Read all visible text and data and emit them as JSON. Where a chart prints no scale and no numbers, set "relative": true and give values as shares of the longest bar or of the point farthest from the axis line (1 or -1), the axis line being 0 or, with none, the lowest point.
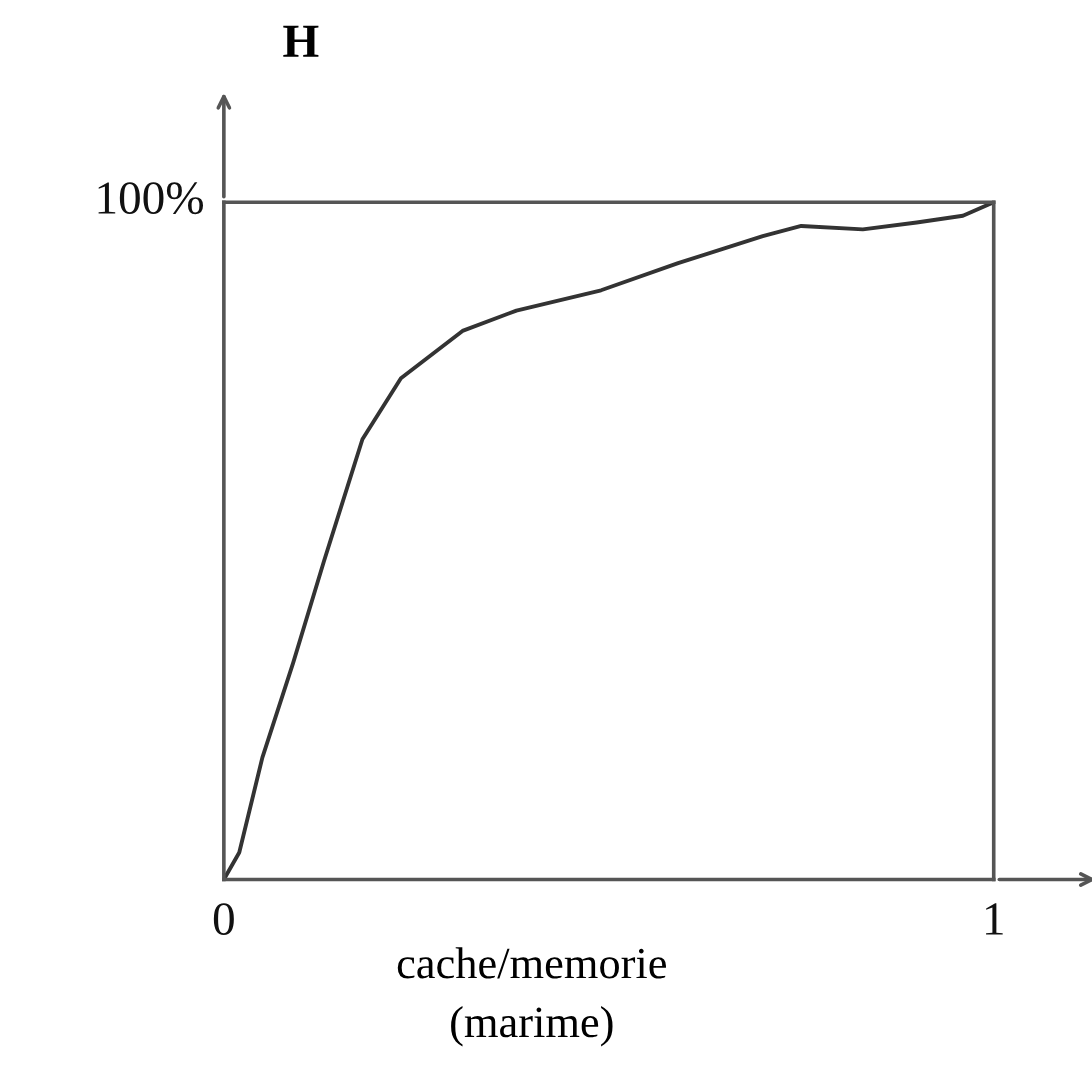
{
  "chart_data": {
    "type": "line",
    "relative": true,
    "xlabel": "cache/memorie\n(marime)",
    "ylabel": "H",
    "annotations": [
      "100%"
    ],
    "series": [
      {
        "color": "#333333",
        "x": [
          0,
          0.02,
          0.05,
          0.09,
          0.13,
          0.18,
          0.23,
          0.31,
          0.38,
          0.49,
          0.59,
          0.7,
          0.75,
          0.83,
          0.9,
          0.96,
          1
        ],
        "values": [
          0,
          0.04,
          0.18,
          0.32,
          0.47,
          0.65,
          0.74,
          0.81,
          0.84,
          0.87,
          0.91,
          0.95,
          0.965,
          0.96,
          0.97,
          0.98,
          1
        ]
      }
    ],
    "xlim": [
      0,
      1
    ],
    "xticks": [
      0,
      1
    ],
    "legend": false,
    "marker": "none",
    "line_style": "solid"
  }
}
